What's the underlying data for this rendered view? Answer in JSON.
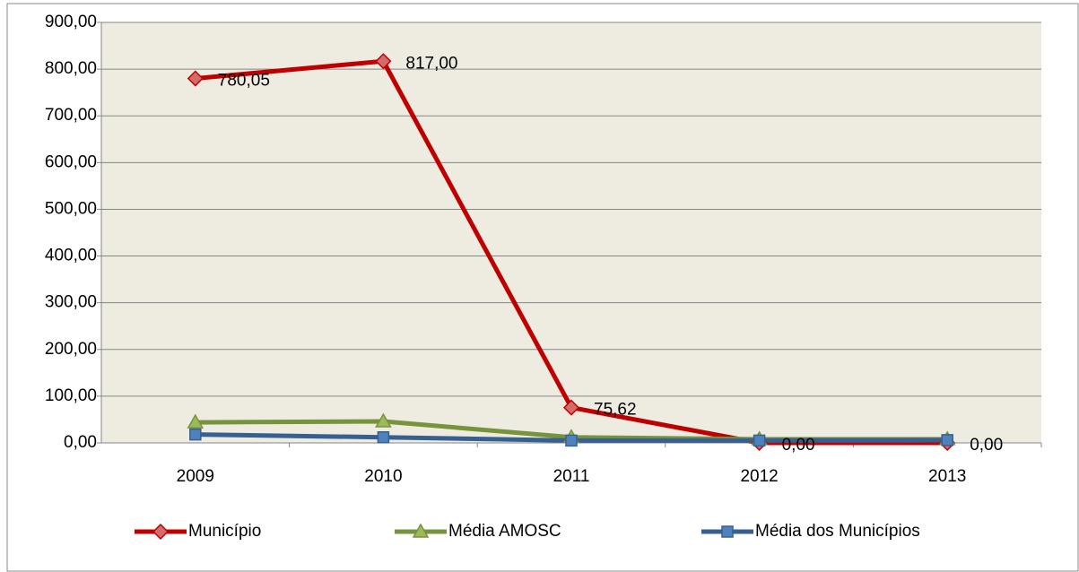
{
  "chart_data": {
    "type": "line",
    "categories": [
      "2009",
      "2010",
      "2011",
      "2012",
      "2013"
    ],
    "series": [
      {
        "name": "Município",
        "color": "#c00000",
        "marker": "diamond",
        "marker_color": "#d46a6a",
        "values": [
          780.05,
          817,
          75.62,
          0,
          0
        ],
        "value_labels": [
          "780,05",
          "817,00",
          "75,62",
          "0,00",
          "0,00"
        ]
      },
      {
        "name": "Média AMOSC",
        "color": "#77933c",
        "marker": "triangle",
        "marker_color": "#9bbb59",
        "values": [
          44,
          46,
          12,
          8,
          8
        ]
      },
      {
        "name": "Média dos Municípios",
        "color": "#376092",
        "marker": "square",
        "marker_color": "#4f81bd",
        "values": [
          18,
          12,
          5,
          5,
          6
        ]
      }
    ],
    "ylim": [
      0,
      900
    ],
    "yticks": [
      {
        "value": 0,
        "label": "0,00"
      },
      {
        "value": 100,
        "label": "100,00"
      },
      {
        "value": 200,
        "label": "200,00"
      },
      {
        "value": 300,
        "label": "300,00"
      },
      {
        "value": 400,
        "label": "400,00"
      },
      {
        "value": 500,
        "label": "500,00"
      },
      {
        "value": 600,
        "label": "600,00"
      },
      {
        "value": 700,
        "label": "700,00"
      },
      {
        "value": 800,
        "label": "800,00"
      },
      {
        "value": 900,
        "label": "900,00"
      }
    ],
    "grid": true,
    "plot_background": "#eeece1",
    "legend": "bottom"
  }
}
